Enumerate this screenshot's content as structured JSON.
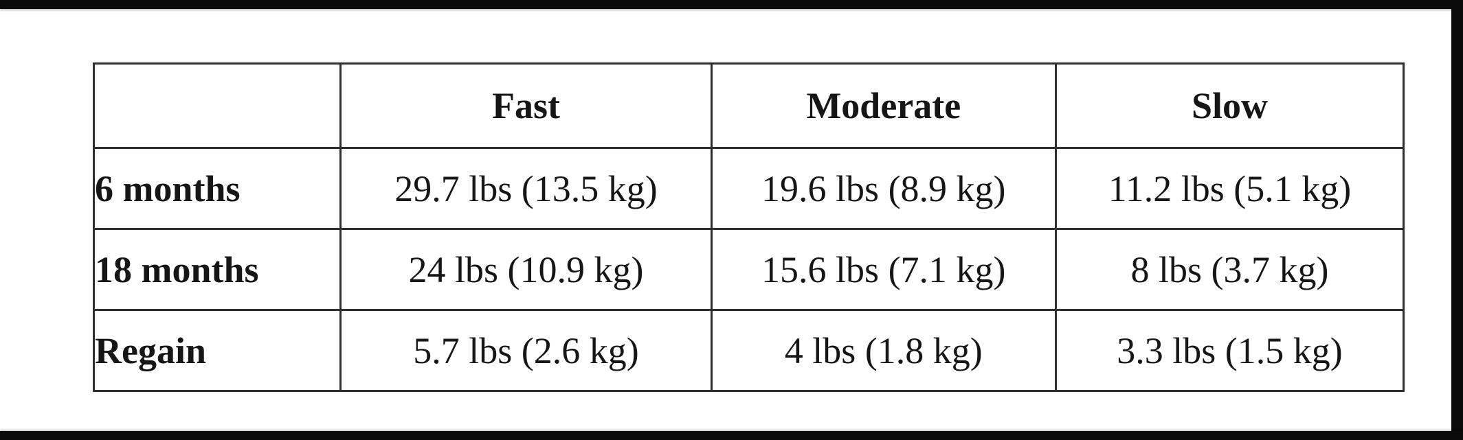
{
  "table": {
    "title_semantic": "weight-loss-by-diet-speed",
    "columns": [
      "",
      "Fast",
      "Moderate",
      "Slow"
    ],
    "rows": [
      {
        "label": "6 months",
        "values": [
          "29.7 lbs (13.5 kg)",
          "19.6 lbs (8.9 kg)",
          "11.2 lbs (5.1 kg)"
        ]
      },
      {
        "label": "18 months",
        "values": [
          "24 lbs (10.9 kg)",
          "15.6 lbs (7.1 kg)",
          "8 lbs (3.7 kg)"
        ]
      },
      {
        "label": "Regain",
        "values": [
          "5.7 lbs (2.6 kg)",
          "4 lbs (1.8 kg)",
          "3.3 lbs (1.5 kg)"
        ]
      }
    ]
  },
  "colors": {
    "table_border": "#2e2e2e",
    "background": "#ffffff",
    "letterbox_bar": "#0b0b0b",
    "text": "#161616"
  }
}
